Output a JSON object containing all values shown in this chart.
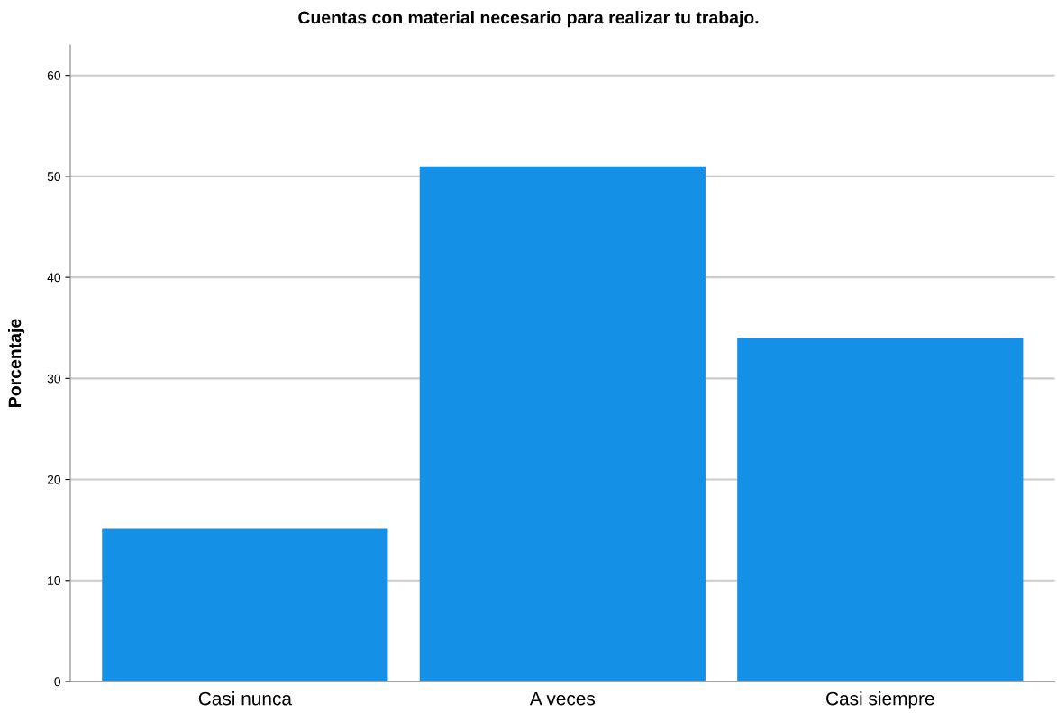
{
  "chart_data": {
    "type": "bar",
    "title": "Cuentas con material necesario para realizar tu trabajo.",
    "ylabel": "Porcentaje",
    "categories": [
      "Casi nunca",
      "A veces",
      "Casi siempre"
    ],
    "values": [
      15.1,
      51.0,
      34.0
    ],
    "color": "#1491e6",
    "ylim": [
      0,
      63
    ],
    "yticks": [
      0,
      10,
      20,
      30,
      40,
      50,
      60
    ],
    "grid": "y",
    "legend": false
  }
}
